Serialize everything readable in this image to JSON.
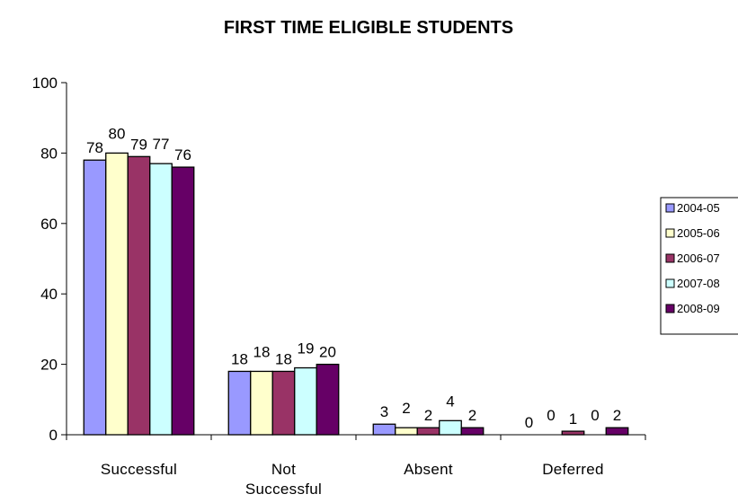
{
  "chart_data": {
    "type": "bar",
    "title": "FIRST TIME ELIGIBLE STUDENTS",
    "categories": [
      "Successful",
      "Not Successful",
      "Absent",
      "Deferred"
    ],
    "category_lines": [
      [
        "Successful"
      ],
      [
        "Not",
        "Successful"
      ],
      [
        "Absent"
      ],
      [
        "Deferred"
      ]
    ],
    "series": [
      {
        "name": "2004-05",
        "color": "#9999ff",
        "values": [
          78,
          18,
          3,
          0
        ]
      },
      {
        "name": "2005-06",
        "color": "#ffffcc",
        "values": [
          80,
          18,
          2,
          0
        ]
      },
      {
        "name": "2006-07",
        "color": "#993366",
        "values": [
          79,
          18,
          2,
          1
        ]
      },
      {
        "name": "2007-08",
        "color": "#ccffff",
        "values": [
          77,
          19,
          4,
          0
        ]
      },
      {
        "name": "2008-09",
        "color": "#660066",
        "values": [
          76,
          20,
          2,
          2
        ]
      }
    ],
    "ylim": [
      0,
      100
    ],
    "yticks": [
      0,
      20,
      40,
      60,
      80,
      100
    ],
    "grid": false,
    "legend": "right"
  }
}
